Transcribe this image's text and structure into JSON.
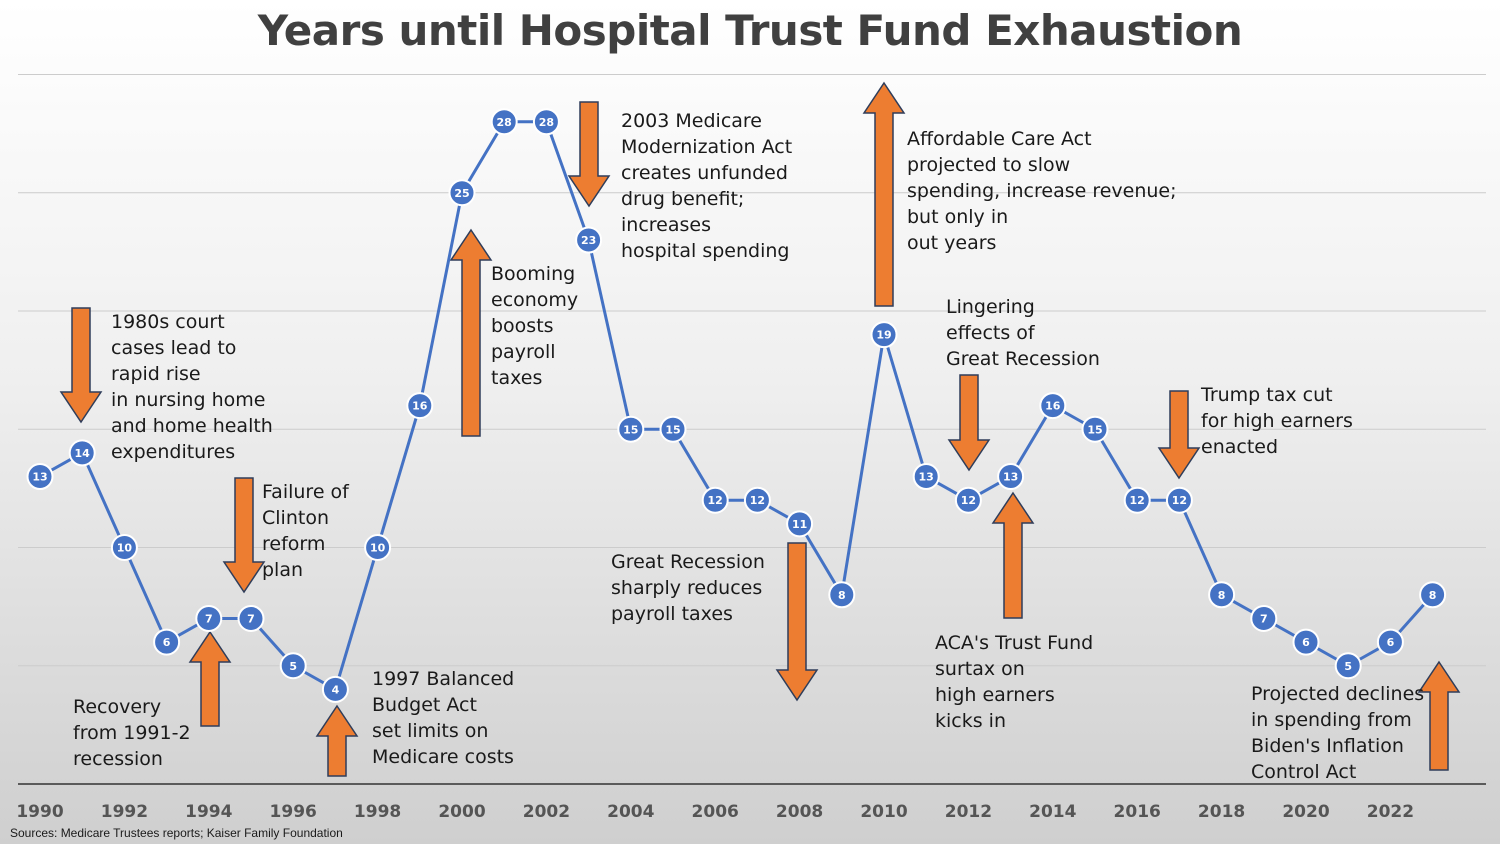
{
  "chart_data": {
    "type": "line",
    "title": "Years until Hospital Trust Fund Exhaustion",
    "xlabel": "",
    "ylabel": "",
    "x": [
      1990,
      1991,
      1992,
      1993,
      1994,
      1995,
      1996,
      1997,
      1998,
      1999,
      2000,
      2001,
      2002,
      2003,
      2004,
      2005,
      2006,
      2007,
      2008,
      2009,
      2010,
      2011,
      2012,
      2013,
      2014,
      2015,
      2016,
      2017,
      2018,
      2019,
      2020,
      2021,
      2022,
      2023
    ],
    "values": [
      13,
      14,
      10,
      6,
      7,
      7,
      5,
      4,
      10,
      16,
      25,
      28,
      28,
      23,
      15,
      15,
      12,
      12,
      11,
      8,
      19,
      13,
      12,
      13,
      16,
      15,
      12,
      12,
      8,
      7,
      6,
      5,
      6,
      8
    ],
    "x_tick_labels": [
      "1990",
      "1992",
      "1994",
      "1996",
      "1998",
      "2000",
      "2002",
      "2004",
      "2006",
      "2008",
      "2010",
      "2012",
      "2014",
      "2016",
      "2018",
      "2020",
      "2022"
    ],
    "ylim": [
      0,
      33
    ],
    "grid": true,
    "line_color": "#4472C4",
    "arrow_color": "#ED7D31",
    "annotations": [
      {
        "text": "1980s court\ncases lead to\nrapid rise\nin nursing home\nand home health\nexpenditures",
        "arrow": "down"
      },
      {
        "text": "Failure of\nClinton\nreform\nplan",
        "arrow": "down"
      },
      {
        "text": "Recovery\nfrom 1991-2\nrecession",
        "arrow": "up"
      },
      {
        "text": "1997 Balanced\nBudget Act\nset limits on\nMedicare costs",
        "arrow": "up"
      },
      {
        "text": "Booming\neconomy\nboosts\npayroll\ntaxes",
        "arrow": "up"
      },
      {
        "text": "2003 Medicare\nModernization Act\ncreates unfunded\ndrug benefit;\nincreases\nhospital spending",
        "arrow": "down"
      },
      {
        "text": "Great Recession\nsharply reduces\npayroll taxes",
        "arrow": "down"
      },
      {
        "text": "Affordable Care Act\nprojected to slow\nspending, increase revenue;\nbut only in\nout years",
        "arrow": "up"
      },
      {
        "text": "Lingering\neffects of\nGreat Recession",
        "arrow": "down"
      },
      {
        "text": "ACA's Trust Fund\nsurtax on\nhigh earners\nkicks in",
        "arrow": "up"
      },
      {
        "text": "Trump tax cut\nfor high earners\nenacted",
        "arrow": "down"
      },
      {
        "text": "Projected declines\nin spending from\nBiden's Inflation\nControl Act",
        "arrow": "up"
      }
    ]
  },
  "footer": {
    "source": "Sources: Medicare Trustees reports; Kaiser Family Foundation"
  }
}
